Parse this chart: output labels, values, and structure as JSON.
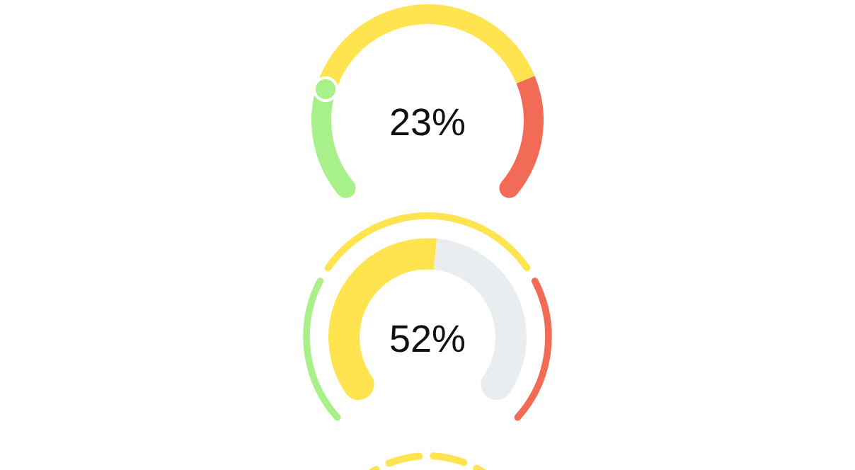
{
  "chart_data": [
    {
      "type": "donut",
      "categories": [
        null,
        null,
        null
      ],
      "values": [
        23,
        52,
        25
      ],
      "colors": [
        "#a8f08a",
        "#ffe450",
        "#f26b57"
      ],
      "annotations": [
        "23%"
      ]
    },
    {
      "type": "donut",
      "series": [
        {
          "values": [
            52,
            48
          ],
          "colors": [
            "#ffe450",
            "#eaedf0"
          ]
        },
        {
          "values": [
            28,
            44,
            28
          ],
          "colors": [
            "#a8f08a",
            "#ffe450",
            "#f26b57"
          ]
        }
      ],
      "annotations": [
        "52%"
      ]
    }
  ]
}
